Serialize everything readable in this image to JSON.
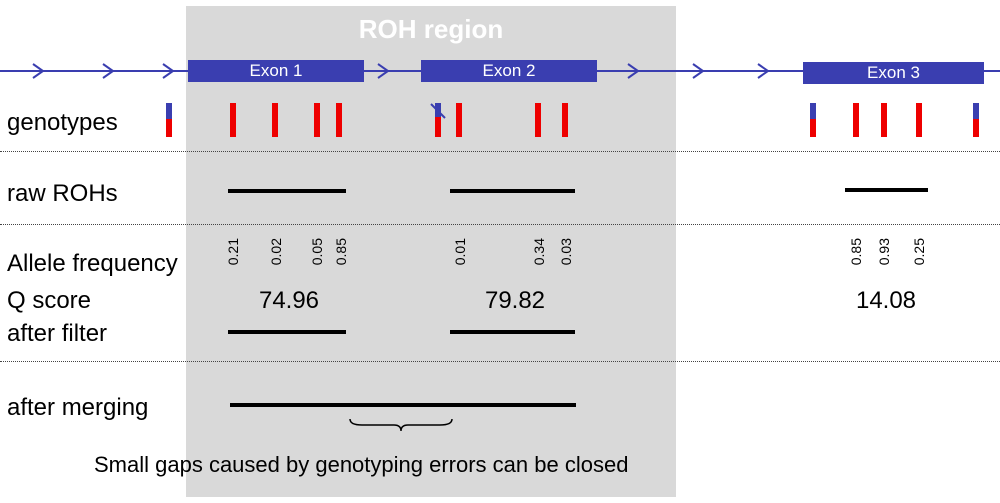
{
  "roh_region": {
    "title": "ROH region"
  },
  "exons": [
    {
      "label": "Exon 1"
    },
    {
      "label": "Exon 2"
    },
    {
      "label": "Exon 3"
    }
  ],
  "rows": {
    "genotypes": "genotypes",
    "raw_rohs": "raw ROHs",
    "allele_frequency": "Allele frequency",
    "q_score": "Q score",
    "after_filter": "after filter",
    "after_merging": "after merging"
  },
  "allele_frequencies": {
    "group1": [
      "0.21",
      "0.02",
      "0.05",
      "0.85"
    ],
    "group2": [
      "0.01",
      "0.34",
      "0.03"
    ],
    "group3": [
      "0.85",
      "0.93",
      "0.25"
    ]
  },
  "q_scores": [
    "74.96",
    "79.82",
    "14.08"
  ],
  "caption": "Small gaps caused by genotyping errors can be closed",
  "colors": {
    "exon": "#3a3eb0",
    "genotype_red": "#ee0000",
    "genotype_blue": "#3a3eb0",
    "roh_region": "#d9d9d9",
    "segment": "#000000"
  }
}
